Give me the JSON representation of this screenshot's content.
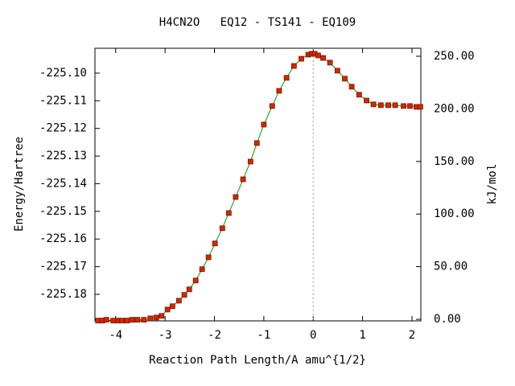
{
  "chart_data": {
    "type": "line",
    "title": "H4CN2O   EQ12 - TS141 - EQ109",
    "xlabel": "Reaction Path Length/A amu^{1/2}",
    "ylabel": "Energy/Hartree",
    "y2label": "kJ/mol",
    "xlim": [
      -4.42,
      2.18
    ],
    "ylim": [
      -225.1896,
      -225.091
    ],
    "y2lim": [
      -1.5,
      257.6
    ],
    "xticks": [
      -4,
      -3,
      -2,
      -1,
      0,
      1,
      2
    ],
    "yticks": [
      -225.18,
      -225.17,
      -225.16,
      -225.15,
      -225.14,
      -225.13,
      -225.12,
      -225.11,
      {
        "value": -225.1,
        "label": "-225.10"
      }
    ],
    "y2ticks": [
      {
        "value": 0,
        "label": "0.00"
      },
      {
        "value": 50,
        "label": "50.00"
      },
      {
        "value": 100,
        "label": "100.00"
      },
      {
        "value": 150,
        "label": "150.00"
      },
      {
        "value": 200,
        "label": "200.00"
      },
      {
        "value": 250,
        "label": "250.00"
      }
    ],
    "line_color": "#00a000",
    "marker_color": "#e02000",
    "x": [
      -4.36,
      -4.27,
      -4.19,
      -4.05,
      -3.96,
      -3.88,
      -3.77,
      -3.67,
      -3.56,
      -3.43,
      -3.3,
      -3.18,
      -3.07,
      -2.95,
      -2.85,
      -2.72,
      -2.61,
      -2.51,
      -2.38,
      -2.25,
      -2.12,
      -1.99,
      -1.84,
      -1.71,
      -1.57,
      -1.42,
      -1.27,
      -1.14,
      -1.0,
      -0.83,
      -0.69,
      -0.54,
      -0.39,
      -0.24,
      -0.1,
      -0.03,
      0.03,
      0.1,
      0.2,
      0.34,
      0.49,
      0.64,
      0.78,
      0.93,
      1.08,
      1.22,
      1.37,
      1.52,
      1.66,
      1.83,
      1.96,
      2.09,
      2.17
    ],
    "values": [
      -225.1895,
      -225.1895,
      -225.1892,
      -225.1895,
      -225.1895,
      -225.1895,
      -225.1895,
      -225.1892,
      -225.1892,
      -225.1892,
      -225.1887,
      -225.1884,
      -225.1878,
      -225.1855,
      -225.1843,
      -225.1823,
      -225.1802,
      -225.1782,
      -225.175,
      -225.1709,
      -225.1666,
      -225.1616,
      -225.1561,
      -225.1506,
      -225.1448,
      -225.1384,
      -225.132,
      -225.1253,
      -225.1186,
      -225.1119,
      -225.1064,
      -225.1017,
      -225.0974,
      -225.0948,
      -225.0933,
      -225.093,
      -225.093,
      -225.0936,
      -225.0945,
      -225.0962,
      -225.0991,
      -225.102,
      -225.1049,
      -225.1078,
      -225.1099,
      -225.1113,
      -225.1116,
      -225.1116,
      -225.1116,
      -225.1119,
      -225.1119,
      -225.1122,
      -225.1122
    ]
  }
}
